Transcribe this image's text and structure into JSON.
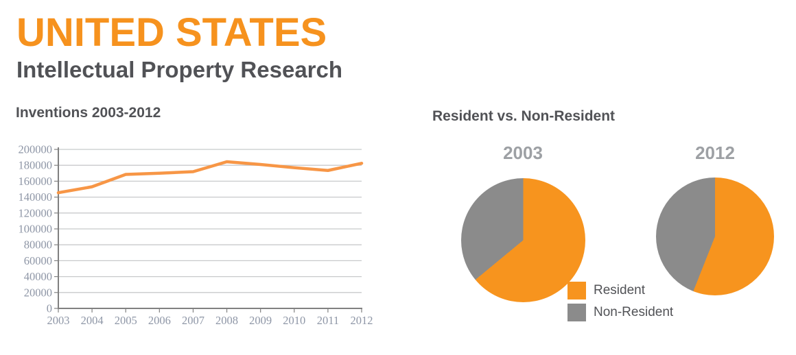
{
  "header": {
    "title": "UNITED STATES",
    "subtitle": "Intellectual Property Research"
  },
  "line_chart_section": {
    "title": "Inventions 2003-2012"
  },
  "pie_section": {
    "title": "Resident vs. Non-Resident",
    "legend": [
      {
        "label": "Resident",
        "color": "#F7941E"
      },
      {
        "label": "Non-Resident",
        "color": "#8B8B8B"
      }
    ]
  },
  "colors": {
    "brand_orange": "#F6921E",
    "line_orange": "#F79646",
    "pie_orange": "#F7941E",
    "pie_gray": "#8B8B8B",
    "dark_text": "#515256",
    "pie_year_label": "#9DA0A4",
    "axis_text": "#8E96A6",
    "gridline": "#C8C9CB",
    "axis_line": "#808080"
  },
  "chart_data": [
    {
      "type": "line",
      "title": "Inventions 2003-2012",
      "x": [
        2003,
        2004,
        2005,
        2006,
        2007,
        2008,
        2009,
        2010,
        2011,
        2012
      ],
      "series": [
        {
          "name": "Inventions",
          "values": [
            145500,
            153000,
            168500,
            170000,
            172000,
            184500,
            181000,
            177000,
            173500,
            182500
          ]
        }
      ],
      "xlabel": "",
      "ylabel": "",
      "ylim": [
        0,
        200000
      ],
      "ytick_step": 20000,
      "grid": true,
      "legend_position": "none",
      "line_color": "#F79646"
    },
    {
      "type": "pie",
      "title": "2003",
      "labels": [
        "Resident",
        "Non-Resident"
      ],
      "values": [
        64,
        36
      ],
      "colors": [
        "#F7941E",
        "#8B8B8B"
      ],
      "start_angle": "12-o-clock",
      "direction": "clockwise"
    },
    {
      "type": "pie",
      "title": "2012",
      "labels": [
        "Resident",
        "Non-Resident"
      ],
      "values": [
        56,
        44
      ],
      "colors": [
        "#F7941E",
        "#8B8B8B"
      ],
      "start_angle": "12-o-clock",
      "direction": "clockwise"
    }
  ]
}
